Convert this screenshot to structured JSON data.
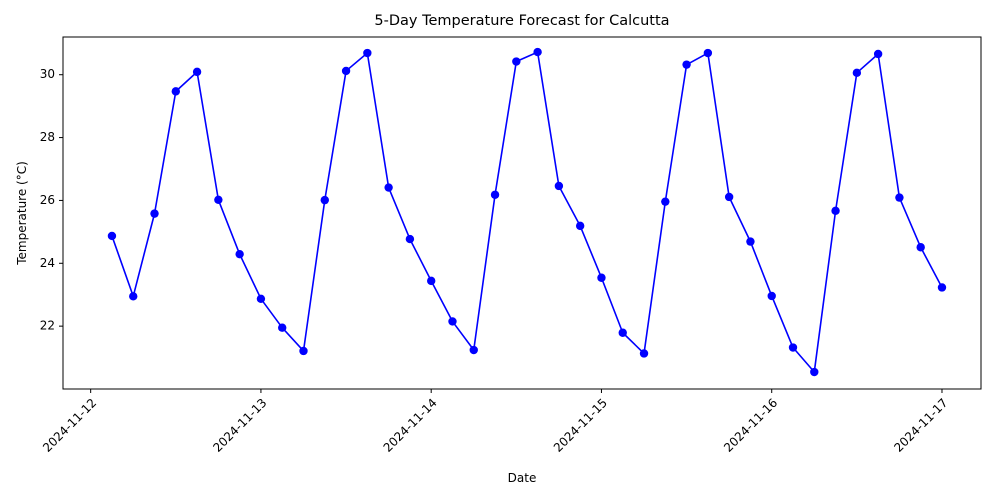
{
  "chart_data": {
    "type": "line",
    "title": "5-Day Temperature Forecast for Calcutta",
    "xlabel": "Date",
    "ylabel": "Temperature (°C)",
    "x_ticks": [
      "2024-11-12",
      "2024-11-13",
      "2024-11-14",
      "2024-11-15",
      "2024-11-16",
      "2024-11-17"
    ],
    "y_ticks": [
      22,
      24,
      26,
      28,
      30
    ],
    "xlim": [
      "2024-11-11 20:06",
      "2024-11-17 05:30"
    ],
    "ylim": [
      20.0,
      31.2
    ],
    "grid": false,
    "legend": "none",
    "series": [
      {
        "color": "#0000ff",
        "marker": "circle",
        "points": [
          {
            "x": "2024-11-12 03:00",
            "y": 24.87
          },
          {
            "x": "2024-11-12 06:00",
            "y": 22.95
          },
          {
            "x": "2024-11-12 09:00",
            "y": 25.58
          },
          {
            "x": "2024-11-12 12:00",
            "y": 29.47
          },
          {
            "x": "2024-11-12 15:00",
            "y": 30.09
          },
          {
            "x": "2024-11-12 18:00",
            "y": 26.02
          },
          {
            "x": "2024-11-12 21:00",
            "y": 24.29
          },
          {
            "x": "2024-11-13 00:00",
            "y": 22.87
          },
          {
            "x": "2024-11-13 03:00",
            "y": 21.95
          },
          {
            "x": "2024-11-13 06:00",
            "y": 21.21
          },
          {
            "x": "2024-11-13 09:00",
            "y": 26.01
          },
          {
            "x": "2024-11-13 12:00",
            "y": 30.12
          },
          {
            "x": "2024-11-13 15:00",
            "y": 30.69
          },
          {
            "x": "2024-11-13 18:00",
            "y": 26.41
          },
          {
            "x": "2024-11-13 21:00",
            "y": 24.77
          },
          {
            "x": "2024-11-14 00:00",
            "y": 23.44
          },
          {
            "x": "2024-11-14 03:00",
            "y": 22.15
          },
          {
            "x": "2024-11-14 06:00",
            "y": 21.24
          },
          {
            "x": "2024-11-14 09:00",
            "y": 26.18
          },
          {
            "x": "2024-11-14 12:00",
            "y": 30.42
          },
          {
            "x": "2024-11-14 15:00",
            "y": 30.72
          },
          {
            "x": "2024-11-14 18:00",
            "y": 26.46
          },
          {
            "x": "2024-11-14 21:00",
            "y": 25.19
          },
          {
            "x": "2024-11-15 00:00",
            "y": 23.54
          },
          {
            "x": "2024-11-15 03:00",
            "y": 21.79
          },
          {
            "x": "2024-11-15 06:00",
            "y": 21.13
          },
          {
            "x": "2024-11-15 09:00",
            "y": 25.96
          },
          {
            "x": "2024-11-15 12:00",
            "y": 30.32
          },
          {
            "x": "2024-11-15 15:00",
            "y": 30.69
          },
          {
            "x": "2024-11-15 18:00",
            "y": 26.11
          },
          {
            "x": "2024-11-15 21:00",
            "y": 24.69
          },
          {
            "x": "2024-11-16 00:00",
            "y": 22.96
          },
          {
            "x": "2024-11-16 03:00",
            "y": 21.32
          },
          {
            "x": "2024-11-16 06:00",
            "y": 20.54
          },
          {
            "x": "2024-11-16 09:00",
            "y": 25.67
          },
          {
            "x": "2024-11-16 12:00",
            "y": 30.06
          },
          {
            "x": "2024-11-16 15:00",
            "y": 30.66
          },
          {
            "x": "2024-11-16 18:00",
            "y": 26.09
          },
          {
            "x": "2024-11-16 21:00",
            "y": 24.51
          },
          {
            "x": "2024-11-17 00:00",
            "y": 23.23
          }
        ]
      }
    ]
  }
}
